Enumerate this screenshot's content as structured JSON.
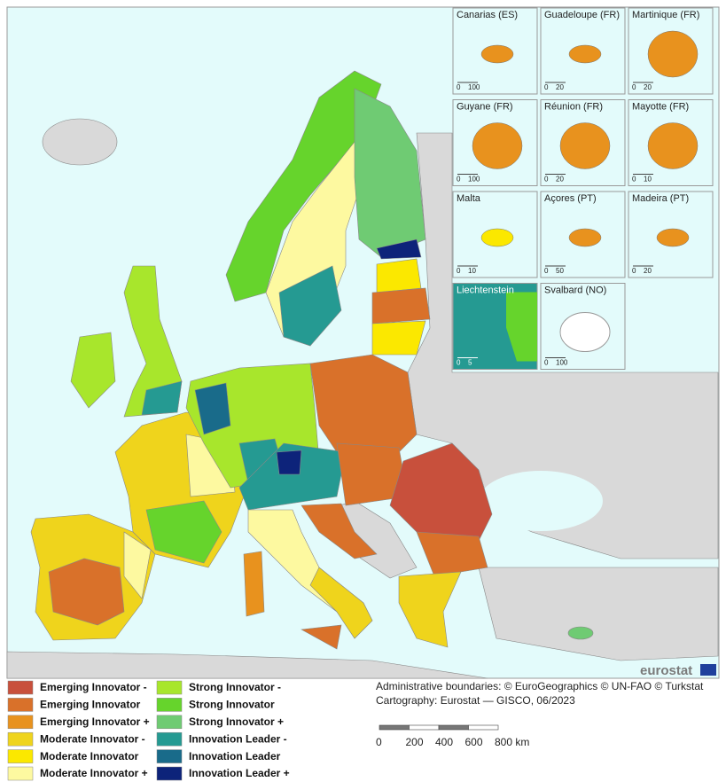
{
  "insets": [
    {
      "name": "Canarias (ES)",
      "scale": [
        "0",
        "100"
      ]
    },
    {
      "name": "Guadeloupe (FR)",
      "scale": [
        "0",
        "20"
      ]
    },
    {
      "name": "Martinique (FR)",
      "scale": [
        "0",
        "20"
      ]
    },
    {
      "name": "Guyane (FR)",
      "scale": [
        "0",
        "100"
      ]
    },
    {
      "name": "Réunion (FR)",
      "scale": [
        "0",
        "20"
      ]
    },
    {
      "name": "Mayotte (FR)",
      "scale": [
        "0",
        "10"
      ]
    },
    {
      "name": "Malta",
      "scale": [
        "0",
        "10"
      ]
    },
    {
      "name": "Açores (PT)",
      "scale": [
        "0",
        "50"
      ]
    },
    {
      "name": "Madeira (PT)",
      "scale": [
        "0",
        "20"
      ]
    },
    {
      "name": "Liechtenstein",
      "scale": [
        "0",
        "5"
      ]
    },
    {
      "name": "Svalbard (NO)",
      "scale": [
        "0",
        "100"
      ]
    }
  ],
  "legend": [
    {
      "label": "Emerging Innovator -",
      "color": "#c8503c"
    },
    {
      "label": "Emerging Innovator",
      "color": "#d9712a"
    },
    {
      "label": "Emerging Innovator +",
      "color": "#e8921e"
    },
    {
      "label": "Moderate Innovator -",
      "color": "#efd41c"
    },
    {
      "label": "Moderate Innovator",
      "color": "#fbe800"
    },
    {
      "label": "Moderate Innovator +",
      "color": "#fdf9a0"
    },
    {
      "label": "Strong Innovator -",
      "color": "#a8e62c"
    },
    {
      "label": "Strong Innovator",
      "color": "#66d42c"
    },
    {
      "label": "Strong Innovator +",
      "color": "#6fcb73"
    },
    {
      "label": "Innovation Leader -",
      "color": "#259a92"
    },
    {
      "label": "Innovation Leader",
      "color": "#196b8a"
    },
    {
      "label": "Innovation Leader +",
      "color": "#0d237a"
    }
  ],
  "credits": [
    "Administrative boundaries: © EuroGeographics © UN-FAO © Turkstat",
    "Cartography: Eurostat — GISCO, 06/2023"
  ],
  "scale_bar": [
    "0",
    "200",
    "400",
    "600",
    "800 km"
  ],
  "logo": "eurostat"
}
